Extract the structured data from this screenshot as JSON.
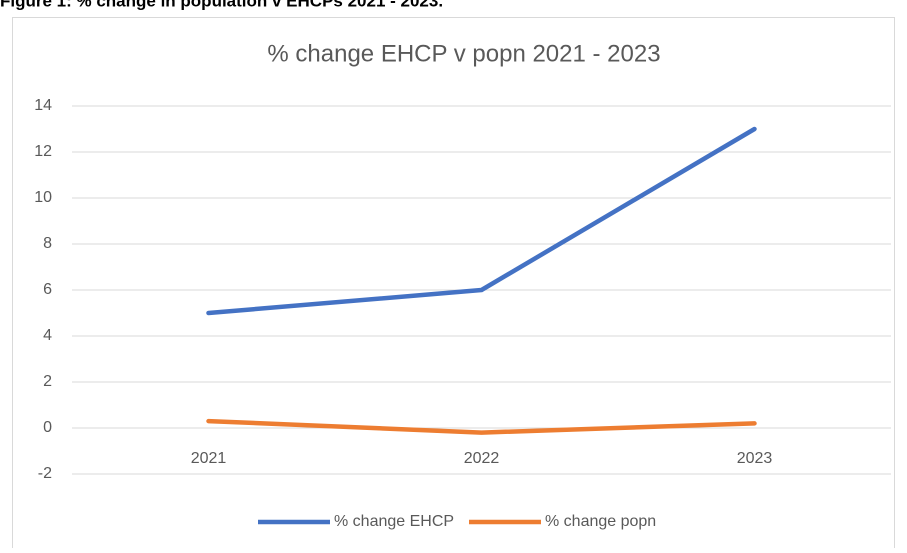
{
  "heading": "Figure 1: % change in population v EHCPs 2021 - 2023.",
  "chart_data": {
    "type": "line",
    "title": "% change EHCP v popn 2021 - 2023",
    "categories": [
      "2021",
      "2022",
      "2023"
    ],
    "series": [
      {
        "name": "% change EHCP",
        "color": "#4472c4",
        "values": [
          5,
          6,
          13
        ]
      },
      {
        "name": "% change popn",
        "color": "#ed7d31",
        "values": [
          0.3,
          -0.2,
          0.2
        ]
      }
    ],
    "ylim": [
      -2,
      14
    ],
    "yticks": [
      -2,
      0,
      2,
      4,
      6,
      8,
      10,
      12,
      14
    ],
    "grid": true,
    "legend": "bottom"
  }
}
